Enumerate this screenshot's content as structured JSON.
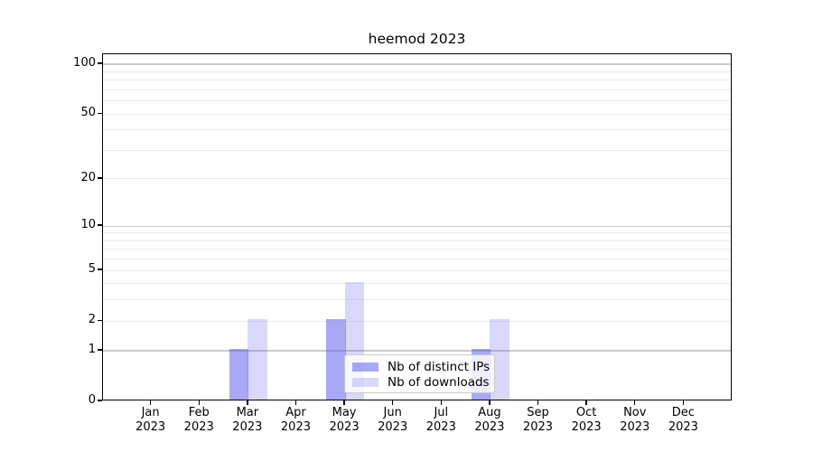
{
  "chart_data": {
    "type": "bar",
    "title": "heemod 2023",
    "categories": [
      "Jan",
      "Feb",
      "Mar",
      "Apr",
      "May",
      "Jun",
      "Jul",
      "Aug",
      "Sep",
      "Oct",
      "Nov",
      "Dec"
    ],
    "x_tick_line2": "2023",
    "series": [
      {
        "name": "Nb of distinct IPs",
        "color": "rgba(100,100,240,0.56)",
        "values": [
          0,
          0,
          1,
          0,
          2,
          0,
          0,
          1,
          0,
          0,
          0,
          0
        ]
      },
      {
        "name": "Nb of downloads",
        "color": "rgba(100,100,240,0.25)",
        "values": [
          0,
          0,
          2,
          0,
          4,
          0,
          0,
          2,
          0,
          0,
          0,
          0
        ]
      }
    ],
    "scale": "log1p",
    "y_ticks": [
      0,
      1,
      2,
      5,
      10,
      20,
      50,
      100
    ],
    "y_major_gridlines": [
      1,
      10,
      100
    ],
    "y_minor_gridlines": [
      2,
      3,
      4,
      5,
      6,
      7,
      8,
      9,
      20,
      30,
      40,
      50,
      60,
      70,
      80,
      90
    ],
    "ylim": [
      0,
      110
    ],
    "grid": true,
    "legend_position": "lower-center",
    "legend_entries": [
      "Nb of distinct IPs",
      "Nb of downloads"
    ]
  },
  "colors": {
    "background": "#ffffff",
    "axis": "#000000",
    "grid_minor": "#ececec",
    "grid_major": "#c9c9c9",
    "bar_distinct_ips_hex": "#a8a8f4",
    "bar_downloads_hex": "#dadaf8",
    "legend_border": "#cbcbcb"
  }
}
